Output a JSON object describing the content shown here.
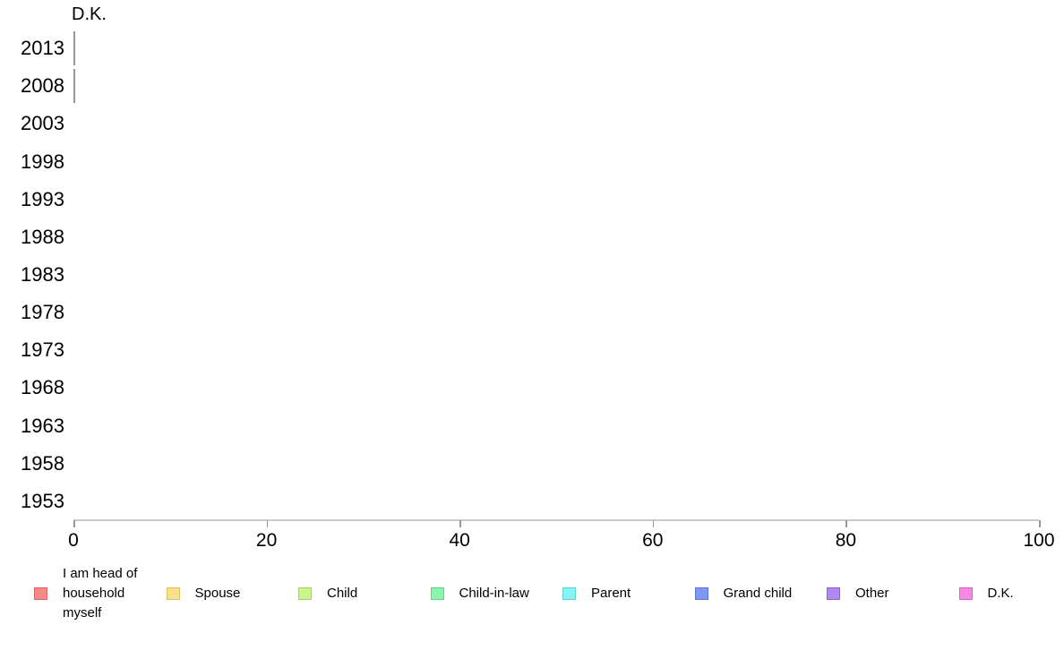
{
  "chart_data": {
    "type": "bar",
    "orientation": "horizontal",
    "panel_title": "D.K.",
    "categories": [
      "2013",
      "2008",
      "2003",
      "1998",
      "1993",
      "1988",
      "1983",
      "1978",
      "1973",
      "1968",
      "1963",
      "1958",
      "1953"
    ],
    "values": [
      0,
      0,
      null,
      null,
      null,
      null,
      null,
      null,
      null,
      null,
      null,
      null,
      null
    ],
    "xlim": [
      0,
      100
    ],
    "x_ticks": [
      0,
      20,
      40,
      60,
      80,
      100
    ],
    "grid": false,
    "legend_position": "bottom",
    "legend": [
      {
        "label": "I am head of household myself",
        "fill": "#f78989",
        "border": "#e06566"
      },
      {
        "label": "Spouse",
        "fill": "#fae189",
        "border": "#ddc163"
      },
      {
        "label": "Child",
        "fill": "#c9f589",
        "border": "#a4d65d"
      },
      {
        "label": "Child-in-law",
        "fill": "#89f5ae",
        "border": "#5dd687"
      },
      {
        "label": "Parent",
        "fill": "#89f2f2",
        "border": "#5dd6d6"
      },
      {
        "label": "Grand child",
        "fill": "#8099f0",
        "border": "#5c76dd"
      },
      {
        "label": "Other",
        "fill": "#b089f5",
        "border": "#8f5fe0"
      },
      {
        "label": "D.K.",
        "fill": "#f889e4",
        "border": "#e05fc5"
      }
    ],
    "colors": {
      "axis_line": "#cbcbcb",
      "tick_mark": "#999999",
      "bar_outline": "#999999",
      "text": "#000000",
      "background": "#ffffff"
    }
  }
}
